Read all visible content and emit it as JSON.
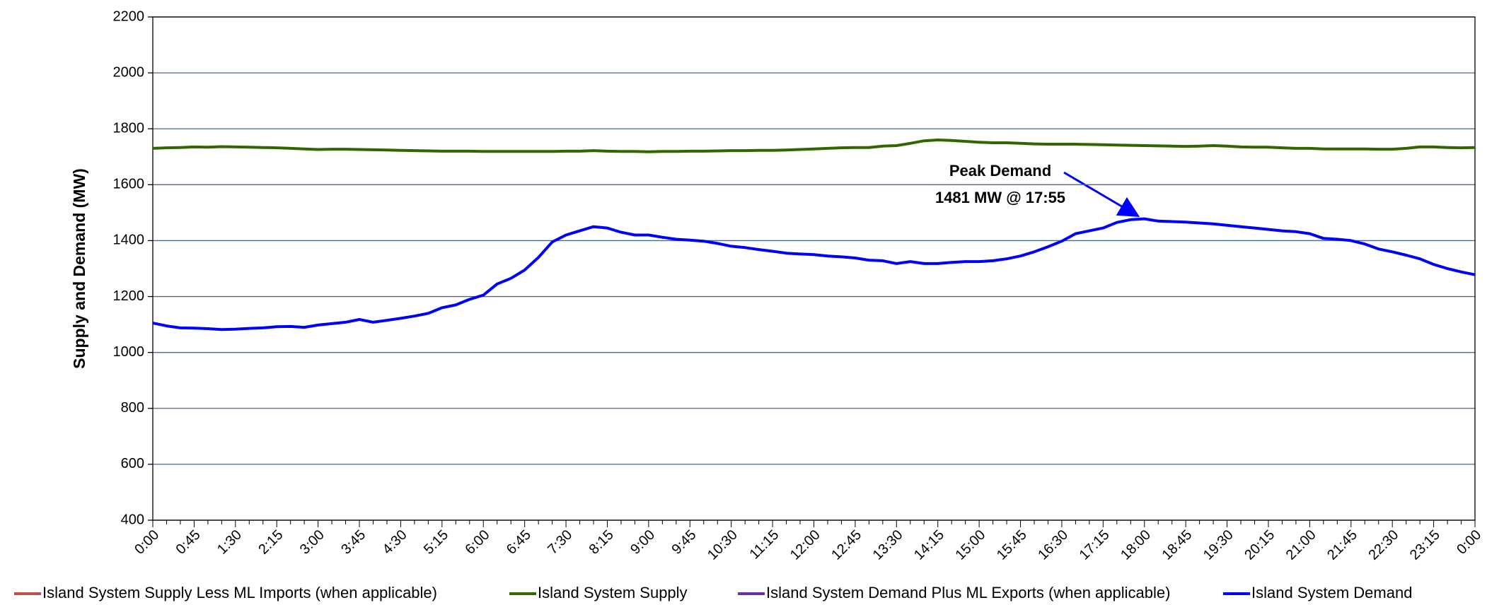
{
  "chart_data": {
    "type": "line",
    "ylabel": "Supply and Demand (MW)",
    "ylim": [
      400,
      2200
    ],
    "yticks": [
      400,
      600,
      800,
      1000,
      1200,
      1400,
      1600,
      1800,
      2000,
      2200
    ],
    "grid": true,
    "legend": "bottom",
    "annotations": [
      "Peak Demand",
      "1481 MW @ 17:55"
    ],
    "categories": [
      "0:00",
      null,
      null,
      "0:45",
      null,
      null,
      "1:30",
      null,
      null,
      "2:15",
      null,
      null,
      "3:00",
      null,
      null,
      "3:45",
      null,
      null,
      "4:30",
      null,
      null,
      "5:15",
      null,
      null,
      "6:00",
      null,
      null,
      "6:45",
      null,
      null,
      "7:30",
      null,
      null,
      "8:15",
      null,
      null,
      "9:00",
      null,
      null,
      "9:45",
      null,
      null,
      "10:30",
      null,
      null,
      "11:15",
      null,
      null,
      "12:00",
      null,
      null,
      "12:45",
      null,
      null,
      "13:30",
      null,
      null,
      "14:15",
      null,
      null,
      "15:00",
      null,
      null,
      "15:45",
      null,
      null,
      "16:30",
      null,
      null,
      "17:15",
      null,
      null,
      "18:00",
      null,
      null,
      "18:45",
      null,
      null,
      "19:30",
      null,
      null,
      "20:15",
      null,
      null,
      "21:00",
      null,
      null,
      "21:45",
      null,
      null,
      "22:30",
      null,
      null,
      "23:15",
      null,
      null,
      "0:00"
    ],
    "series": [
      {
        "name": "Island System Supply Less ML Imports (when applicable)",
        "color": "#c0504d",
        "values": [
          null,
          null,
          null,
          null,
          null,
          null,
          null,
          null,
          null,
          null,
          null,
          null,
          null,
          null,
          null,
          null,
          null,
          null,
          null,
          null,
          null,
          null,
          null,
          null,
          null,
          null,
          null,
          null,
          null,
          null,
          null,
          null,
          null,
          null,
          null,
          null,
          null,
          null,
          null,
          null,
          null,
          null,
          null,
          null,
          null,
          null,
          null,
          null,
          null,
          null,
          null,
          null,
          null,
          null,
          null,
          null,
          null,
          null,
          null,
          null,
          null,
          null,
          null,
          null,
          null,
          null,
          null,
          null,
          null,
          null,
          null,
          null,
          null,
          null,
          null,
          null,
          null,
          null,
          null,
          null,
          null,
          null,
          null,
          null,
          null,
          null,
          null,
          null,
          null,
          null,
          null,
          null,
          null,
          null,
          null,
          null,
          null
        ]
      },
      {
        "name": "Island System Supply",
        "color": "#336600",
        "values": [
          1730,
          1732,
          1733,
          1735,
          1734,
          1736,
          1735,
          1734,
          1733,
          1732,
          1730,
          1728,
          1726,
          1727,
          1727,
          1726,
          1725,
          1724,
          1723,
          1722,
          1721,
          1720,
          1720,
          1720,
          1719,
          1719,
          1719,
          1719,
          1719,
          1719,
          1720,
          1720,
          1722,
          1720,
          1719,
          1719,
          1718,
          1719,
          1719,
          1720,
          1720,
          1721,
          1722,
          1722,
          1723,
          1723,
          1724,
          1726,
          1728,
          1730,
          1732,
          1733,
          1733,
          1738,
          1740,
          1748,
          1757,
          1760,
          1758,
          1755,
          1752,
          1750,
          1750,
          1748,
          1746,
          1745,
          1745,
          1745,
          1744,
          1743,
          1742,
          1741,
          1740,
          1739,
          1738,
          1737,
          1738,
          1740,
          1738,
          1735,
          1734,
          1734,
          1732,
          1730,
          1730,
          1728,
          1728,
          1728,
          1728,
          1727,
          1727,
          1730,
          1735,
          1735,
          1733,
          1732,
          1733
        ]
      },
      {
        "name": "Island System Demand Plus ML Exports (when applicable)",
        "color": "#7030a0",
        "values": [
          null,
          null,
          null,
          null,
          null,
          null,
          null,
          null,
          null,
          null,
          null,
          null,
          null,
          null,
          null,
          null,
          null,
          null,
          null,
          null,
          null,
          null,
          null,
          null,
          null,
          null,
          null,
          null,
          null,
          null,
          null,
          null,
          null,
          null,
          null,
          null,
          null,
          null,
          null,
          null,
          null,
          null,
          null,
          null,
          null,
          null,
          null,
          null,
          null,
          null,
          null,
          null,
          null,
          null,
          null,
          null,
          null,
          null,
          null,
          null,
          null,
          null,
          null,
          null,
          null,
          null,
          null,
          null,
          null,
          null,
          null,
          null,
          null,
          null,
          null,
          null,
          null,
          null,
          null,
          null,
          null,
          null,
          null,
          null,
          null,
          null,
          null,
          null,
          null,
          null,
          null,
          null,
          null,
          null,
          null,
          null,
          null
        ]
      },
      {
        "name": "Island System Demand",
        "color": "#0000ff",
        "values": [
          1105,
          1095,
          1088,
          1087,
          1085,
          1082,
          1083,
          1086,
          1088,
          1092,
          1093,
          1090,
          1098,
          1103,
          1108,
          1118,
          1108,
          1115,
          1122,
          1130,
          1140,
          1160,
          1170,
          1190,
          1205,
          1245,
          1265,
          1295,
          1340,
          1395,
          1420,
          1435,
          1450,
          1445,
          1430,
          1420,
          1420,
          1412,
          1405,
          1402,
          1398,
          1390,
          1380,
          1375,
          1368,
          1362,
          1355,
          1352,
          1350,
          1345,
          1342,
          1338,
          1330,
          1328,
          1318,
          1325,
          1318,
          1318,
          1322,
          1325,
          1325,
          1328,
          1335,
          1345,
          1360,
          1378,
          1398,
          1425,
          1435,
          1445,
          1465,
          1475,
          1478,
          1470,
          1468,
          1466,
          1463,
          1460,
          1455,
          1450,
          1445,
          1440,
          1435,
          1432,
          1425,
          1408,
          1405,
          1400,
          1388,
          1370,
          1360,
          1348,
          1335,
          1315,
          1300,
          1288,
          1278
        ]
      }
    ]
  }
}
